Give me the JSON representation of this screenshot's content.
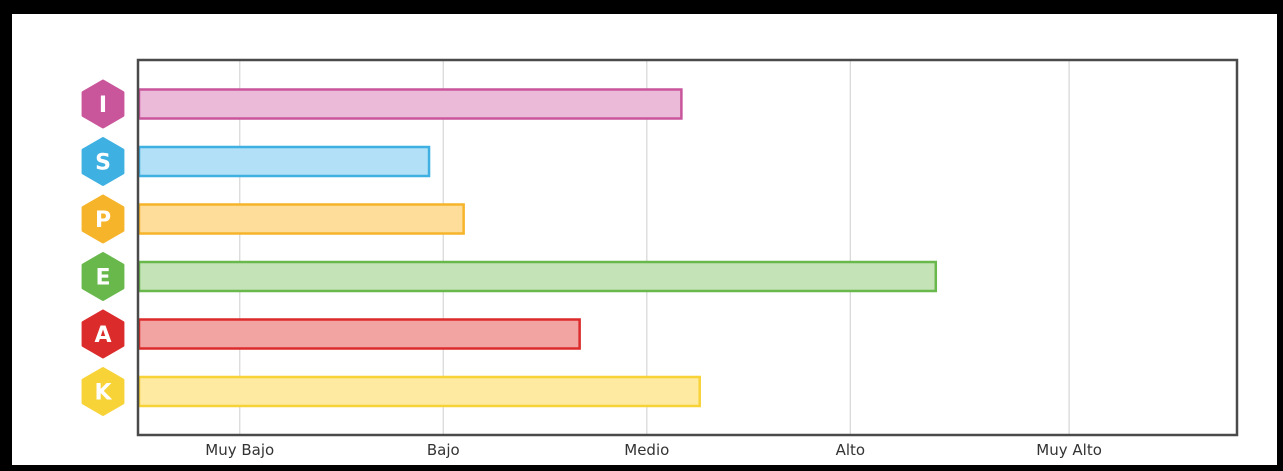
{
  "chart_data": {
    "type": "bar",
    "orientation": "horizontal",
    "categories": [
      "I",
      "S",
      "P",
      "E",
      "A",
      "K"
    ],
    "values": [
      2.67,
      1.43,
      1.6,
      3.92,
      2.17,
      2.76
    ],
    "colors": {
      "I": {
        "fill": "#ecbad9",
        "stroke": "#c9559b"
      },
      "S": {
        "fill": "#b2e0f6",
        "stroke": "#3fb0e2"
      },
      "P": {
        "fill": "#fedd9b",
        "stroke": "#f6b42a"
      },
      "E": {
        "fill": "#c4e3b7",
        "stroke": "#68b84b"
      },
      "A": {
        "fill": "#f2a4a2",
        "stroke": "#dc2b2b"
      },
      "K": {
        "fill": "#feeaa0",
        "stroke": "#f7d338"
      }
    },
    "x_ticks": [
      {
        "value": 0.5,
        "label": "Muy Bajo"
      },
      {
        "value": 1.5,
        "label": "Bajo"
      },
      {
        "value": 2.5,
        "label": "Medio"
      },
      {
        "value": 3.5,
        "label": "Alto"
      },
      {
        "value": 4.575,
        "label": "Muy Alto"
      }
    ],
    "xlim": [
      0,
      5.4
    ],
    "grid": true,
    "title": "",
    "xlabel": "",
    "ylabel": ""
  }
}
